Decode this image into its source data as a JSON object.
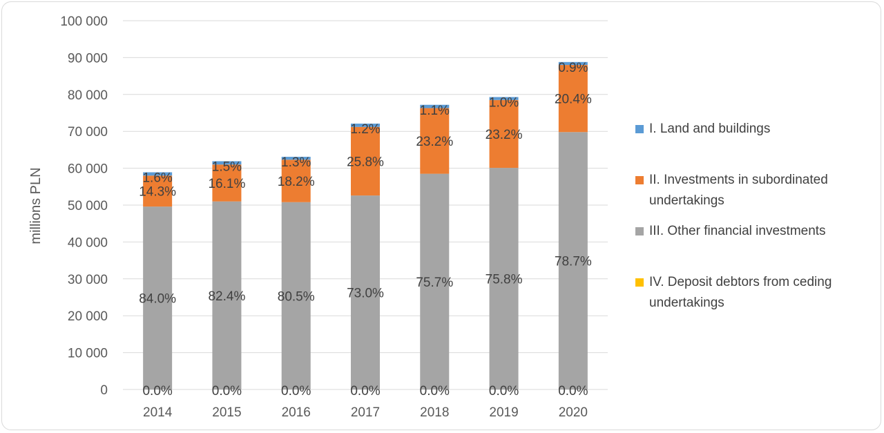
{
  "chart_data": {
    "type": "bar",
    "stacked": true,
    "ylabel": "millions PLN",
    "ylim": [
      0,
      100000
    ],
    "yticks": [
      "0",
      "10 000",
      "20 000",
      "30 000",
      "40 000",
      "50 000",
      "60 000",
      "70 000",
      "80 000",
      "90 000",
      "100 000"
    ],
    "ytick_values": [
      0,
      10000,
      20000,
      30000,
      40000,
      50000,
      60000,
      70000,
      80000,
      90000,
      100000
    ],
    "grid": true,
    "legend_position": "right",
    "categories": [
      "2014",
      "2015",
      "2016",
      "2017",
      "2018",
      "2019",
      "2020"
    ],
    "series": [
      {
        "name": "IV. Deposit debtors from ceding undertakings",
        "color": "#FFC000",
        "values": [
          0,
          0,
          0,
          0,
          0,
          0,
          0
        ],
        "labels": [
          "0.0%",
          "0.0%",
          "0.0%",
          "0.0%",
          "0.0%",
          "0.0%",
          "0.0%"
        ]
      },
      {
        "name": "III. Other financial investments",
        "color": "#A5A5A5",
        "values": [
          49600,
          51000,
          50800,
          52600,
          58500,
          60100,
          69800
        ],
        "labels": [
          "84.0%",
          "82.4%",
          "80.5%",
          "73.0%",
          "75.7%",
          "75.8%",
          "78.7%"
        ]
      },
      {
        "name": "II. Investments in subordinated undertakings",
        "color": "#ED7D31",
        "values": [
          8400,
          10000,
          11500,
          18600,
          17800,
          18400,
          18200
        ],
        "labels": [
          "14.3%",
          "16.1%",
          "18.2%",
          "25.8%",
          "23.2%",
          "23.2%",
          "20.4%"
        ]
      },
      {
        "name": "I. Land and buildings",
        "color": "#5B9BD5",
        "values": [
          900,
          900,
          800,
          900,
          900,
          800,
          800
        ],
        "labels": [
          "1.6%",
          "1.5%",
          "1.3%",
          "1.2%",
          "1.1%",
          "1.0%",
          "0.9%"
        ]
      }
    ],
    "legend_order": [
      "I. Land and buildings",
      "II. Investments in subordinated undertakings",
      "III. Other financial investments",
      "IV. Deposit debtors from ceding undertakings"
    ]
  },
  "legend": {
    "item1": {
      "label_line1": "I. Land and buildings",
      "label_line2": "",
      "color": "#5B9BD5"
    },
    "item2": {
      "label_line1": "II. Investments in subordinated",
      "label_line2": "undertakings",
      "color": "#ED7D31"
    },
    "item3": {
      "label_line1": "III. Other financial investments",
      "label_line2": "",
      "color": "#A5A5A5"
    },
    "item4": {
      "label_line1": "IV. Deposit debtors from ceding",
      "label_line2": "undertakings",
      "color": "#FFC000"
    }
  }
}
